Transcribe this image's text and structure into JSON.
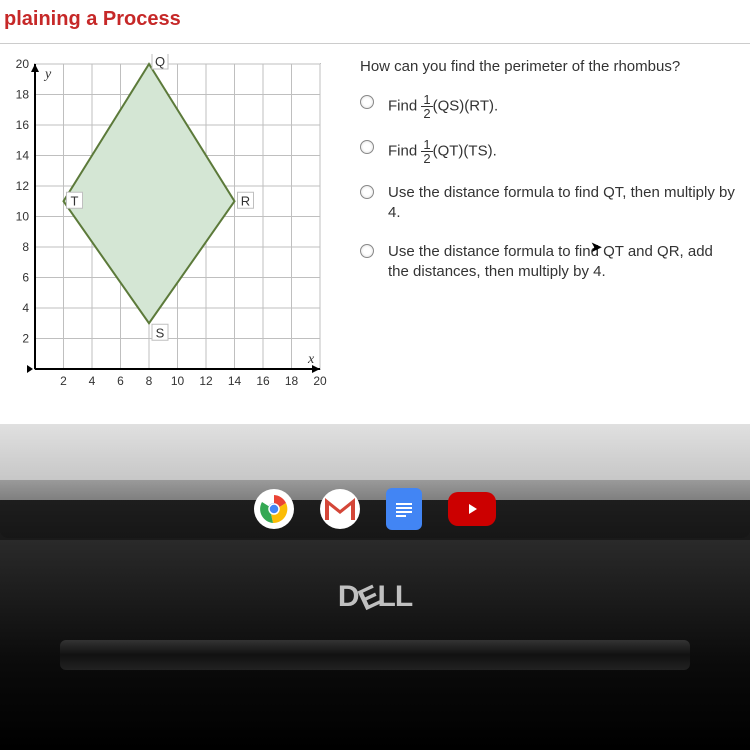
{
  "header": {
    "title": "plaining a Process"
  },
  "question": "How can you find the perimeter of the rhombus?",
  "options": [
    {
      "prefix": "Find ",
      "frac_num": "1",
      "frac_den": "2",
      "suffix": "(QS)(RT)."
    },
    {
      "prefix": "Find ",
      "frac_num": "1",
      "frac_den": "2",
      "suffix": "(QT)(TS)."
    },
    {
      "text": "Use the distance formula to find QT, then multiply by 4."
    },
    {
      "text": "Use the distance formula to find QT and QR, add the distances, then multiply by 4."
    }
  ],
  "graph": {
    "type": "coordinate-plane",
    "background_color": "#ffffff",
    "grid_color": "#bfbfbf",
    "axis_color": "#000000",
    "shape_fill": "#d4e6d4",
    "shape_stroke": "#5c7a3a",
    "shape_stroke_width": 2,
    "x_axis_label": "x",
    "y_axis_label": "y",
    "xlim": [
      0,
      20
    ],
    "ylim": [
      0,
      20
    ],
    "xtick_step": 2,
    "ytick_step": 2,
    "xticks": [
      2,
      4,
      6,
      8,
      10,
      12,
      14,
      16,
      18,
      20
    ],
    "yticks": [
      2,
      4,
      6,
      8,
      10,
      12,
      14,
      16,
      18,
      20
    ],
    "label_fontsize": 12,
    "points": {
      "Q": {
        "x": 8,
        "y": 20
      },
      "R": {
        "x": 14,
        "y": 11
      },
      "S": {
        "x": 8,
        "y": 3
      },
      "T": {
        "x": 2,
        "y": 11
      }
    }
  },
  "brand": "DELL",
  "taskbar_icons": [
    "chrome",
    "gmail",
    "docs",
    "youtube"
  ]
}
